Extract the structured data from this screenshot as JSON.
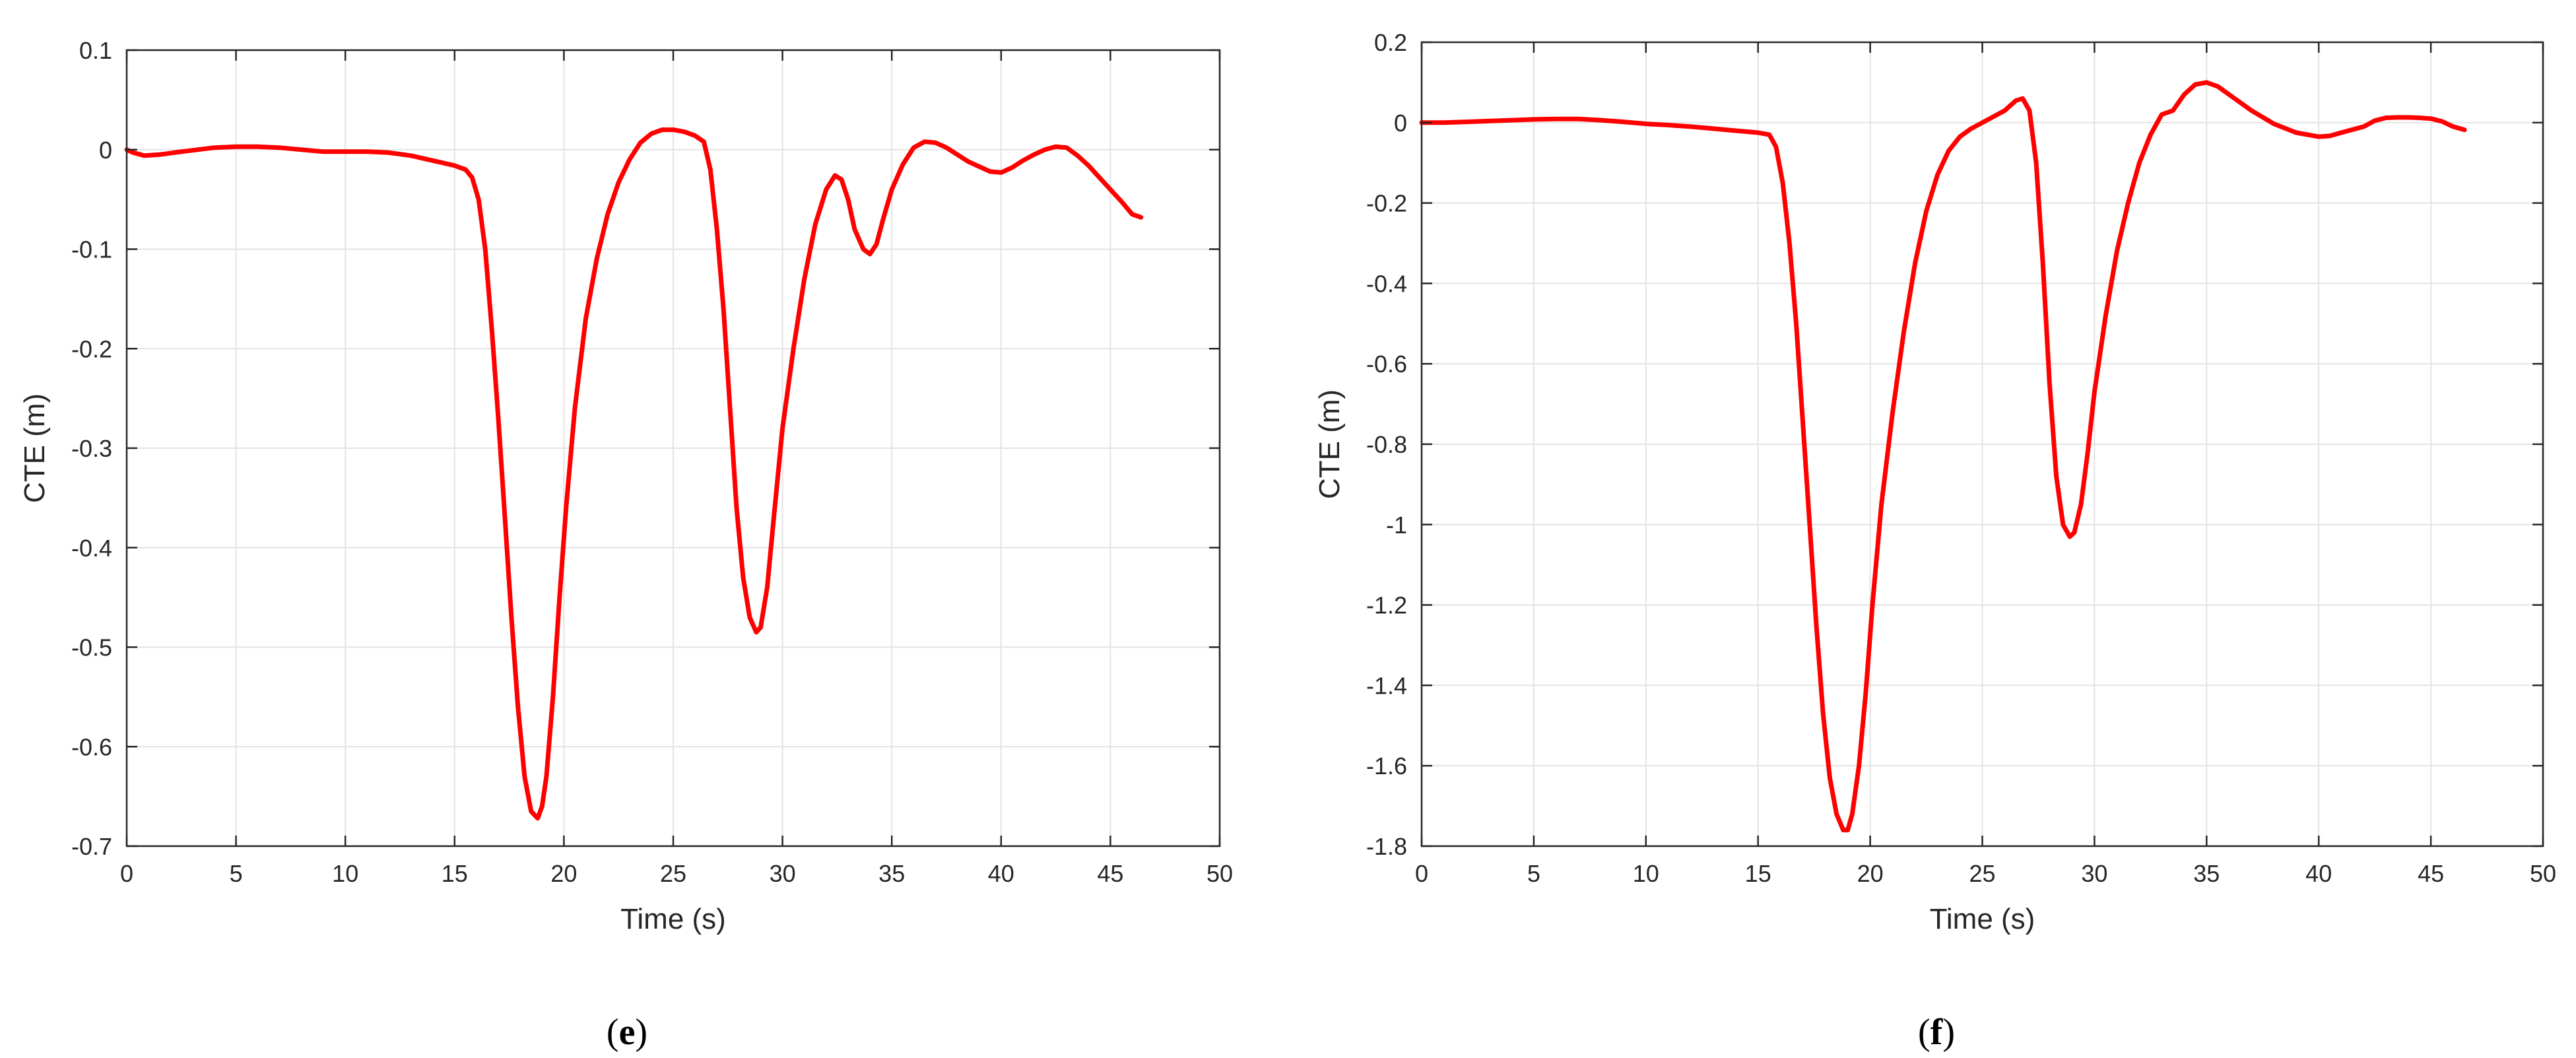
{
  "chart_data": [
    {
      "type": "line",
      "panel_label_open": "(",
      "panel_label_letter": "e",
      "panel_label_close": ")",
      "xlabel": "Time (s)",
      "ylabel": "CTE (m)",
      "xlim": [
        0,
        50
      ],
      "ylim": [
        -0.7,
        0.1
      ],
      "xticks": [
        0,
        5,
        10,
        15,
        20,
        25,
        30,
        35,
        40,
        45,
        50
      ],
      "yticks": [
        0.1,
        0,
        -0.1,
        -0.2,
        -0.3,
        -0.4,
        -0.5,
        -0.6,
        -0.7
      ],
      "grid": true,
      "series": [
        {
          "color": "#ff0000",
          "x": [
            0,
            0.3,
            0.8,
            1.5,
            2.5,
            4,
            5,
            6,
            7,
            8,
            9,
            10,
            11,
            12,
            13,
            14,
            15,
            15.5,
            15.8,
            16.1,
            16.4,
            16.7,
            17,
            17.3,
            17.6,
            17.9,
            18.2,
            18.5,
            18.8,
            19.0,
            19.2,
            19.5,
            19.8,
            20.1,
            20.5,
            21,
            21.5,
            22,
            22.5,
            23,
            23.5,
            24,
            24.5,
            25,
            25.5,
            26,
            26.4,
            26.7,
            27,
            27.3,
            27.6,
            27.9,
            28.2,
            28.5,
            28.8,
            29.0,
            29.3,
            29.6,
            30,
            30.5,
            31,
            31.5,
            32,
            32.4,
            32.7,
            33,
            33.3,
            33.7,
            34,
            34.3,
            34.6,
            35,
            35.5,
            36,
            36.5,
            37,
            37.5,
            38,
            38.5,
            39,
            39.5,
            40,
            40.5,
            41,
            41.5,
            42,
            42.5,
            43,
            43.5,
            44,
            44.5,
            45,
            45.5,
            46,
            46.4
          ],
          "y": [
            0.0,
            -0.003,
            -0.006,
            -0.005,
            -0.002,
            0.002,
            0.003,
            0.003,
            0.002,
            0.0,
            -0.002,
            -0.002,
            -0.002,
            -0.003,
            -0.006,
            -0.011,
            -0.016,
            -0.02,
            -0.028,
            -0.05,
            -0.1,
            -0.18,
            -0.27,
            -0.37,
            -0.47,
            -0.56,
            -0.63,
            -0.665,
            -0.672,
            -0.66,
            -0.63,
            -0.55,
            -0.45,
            -0.36,
            -0.26,
            -0.17,
            -0.11,
            -0.065,
            -0.033,
            -0.01,
            0.007,
            0.016,
            0.02,
            0.02,
            0.018,
            0.014,
            0.008,
            -0.02,
            -0.08,
            -0.16,
            -0.26,
            -0.36,
            -0.43,
            -0.47,
            -0.485,
            -0.48,
            -0.44,
            -0.37,
            -0.28,
            -0.2,
            -0.13,
            -0.075,
            -0.04,
            -0.026,
            -0.03,
            -0.05,
            -0.08,
            -0.1,
            -0.105,
            -0.095,
            -0.07,
            -0.04,
            -0.015,
            0.002,
            0.008,
            0.007,
            0.002,
            -0.005,
            -0.012,
            -0.017,
            -0.022,
            -0.023,
            -0.018,
            -0.011,
            -0.005,
            0.0,
            0.003,
            0.002,
            -0.006,
            -0.016,
            -0.028,
            -0.04,
            -0.052,
            -0.065,
            -0.068
          ]
        }
      ]
    },
    {
      "type": "line",
      "panel_label_open": "(",
      "panel_label_letter": "f",
      "panel_label_close": ")",
      "xlabel": "Time (s)",
      "ylabel": "CTE (m)",
      "xlim": [
        0,
        50
      ],
      "ylim": [
        -1.8,
        0.2
      ],
      "xticks": [
        0,
        5,
        10,
        15,
        20,
        25,
        30,
        35,
        40,
        45,
        50
      ],
      "yticks": [
        0.2,
        0,
        -0.2,
        -0.4,
        -0.6,
        -0.8,
        -1,
        -1.2,
        -1.4,
        -1.6,
        -1.8
      ],
      "grid": true,
      "series": [
        {
          "color": "#ff0000",
          "x": [
            0,
            1,
            2,
            3,
            4,
            5,
            6,
            7,
            8,
            9,
            10,
            11,
            12,
            13,
            14,
            15,
            15.5,
            15.8,
            16.1,
            16.4,
            16.7,
            17,
            17.3,
            17.6,
            17.9,
            18.2,
            18.5,
            18.8,
            19.0,
            19.2,
            19.5,
            19.8,
            20.1,
            20.5,
            21,
            21.5,
            22,
            22.5,
            23,
            23.5,
            24,
            24.5,
            25,
            25.5,
            26,
            26.5,
            26.8,
            27.1,
            27.4,
            27.7,
            28,
            28.3,
            28.6,
            28.9,
            29.1,
            29.4,
            29.7,
            30,
            30.5,
            31,
            31.5,
            32,
            32.5,
            33,
            33.5,
            34,
            34.5,
            35,
            35.5,
            36,
            37,
            38,
            39,
            40,
            40.5,
            41,
            42,
            42.5,
            43,
            43.5,
            44,
            44.5,
            45,
            45.5,
            46,
            46.5
          ],
          "y": [
            0.0,
            0.0,
            0.002,
            0.004,
            0.006,
            0.008,
            0.009,
            0.009,
            0.006,
            0.002,
            -0.003,
            -0.006,
            -0.01,
            -0.015,
            -0.02,
            -0.025,
            -0.03,
            -0.06,
            -0.15,
            -0.3,
            -0.5,
            -0.75,
            -1.0,
            -1.25,
            -1.47,
            -1.63,
            -1.72,
            -1.76,
            -1.76,
            -1.72,
            -1.6,
            -1.42,
            -1.2,
            -0.95,
            -0.72,
            -0.52,
            -0.35,
            -0.22,
            -0.13,
            -0.07,
            -0.035,
            -0.015,
            0.0,
            0.015,
            0.03,
            0.055,
            0.06,
            0.03,
            -0.1,
            -0.35,
            -0.65,
            -0.88,
            -1.0,
            -1.03,
            -1.02,
            -0.95,
            -0.82,
            -0.67,
            -0.48,
            -0.32,
            -0.2,
            -0.1,
            -0.03,
            0.02,
            0.03,
            0.07,
            0.095,
            0.1,
            0.09,
            0.07,
            0.03,
            -0.003,
            -0.025,
            -0.035,
            -0.033,
            -0.025,
            -0.01,
            0.005,
            0.012,
            0.013,
            0.013,
            0.012,
            0.01,
            0.003,
            -0.01,
            -0.018
          ]
        }
      ]
    }
  ]
}
